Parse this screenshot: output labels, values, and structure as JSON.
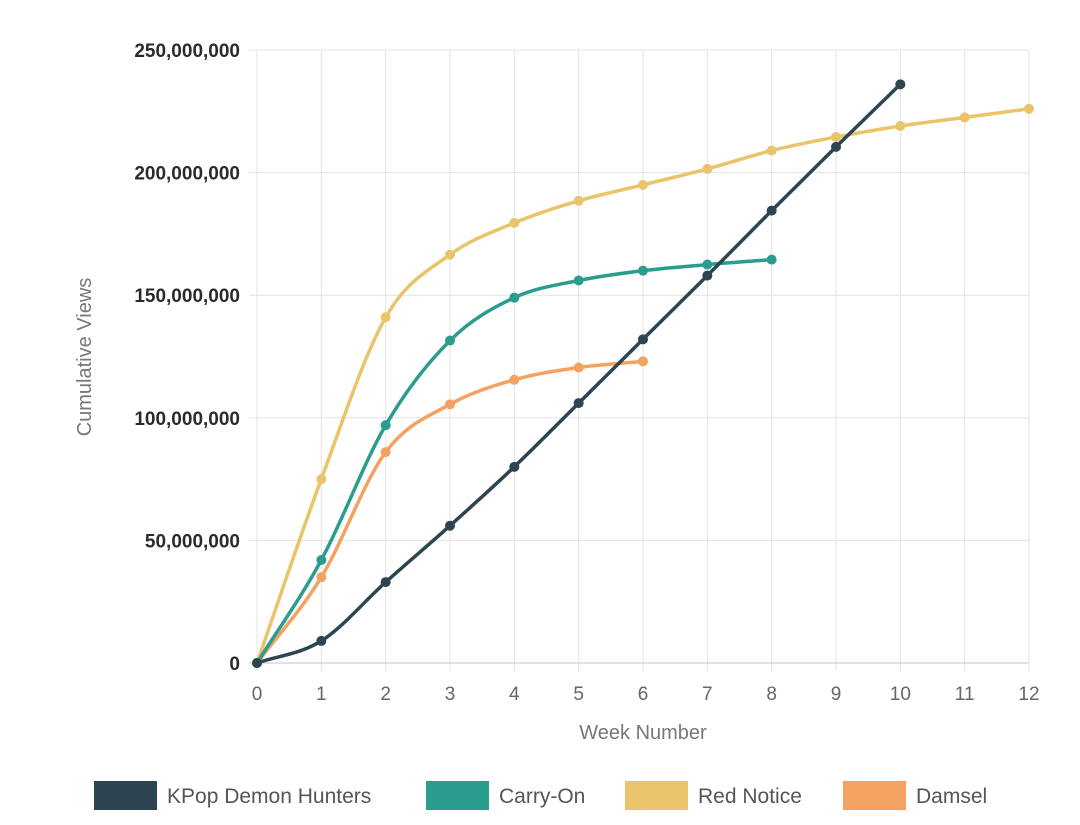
{
  "chart_data": {
    "type": "line",
    "xlabel": "Week Number",
    "ylabel": "Cumulative Views",
    "xlim": [
      0,
      12
    ],
    "ylim": [
      0,
      250000000
    ],
    "xticks": [
      0,
      1,
      2,
      3,
      4,
      5,
      6,
      7,
      8,
      9,
      10,
      11,
      12
    ],
    "yticks": [
      0,
      50000000,
      100000000,
      150000000,
      200000000,
      250000000
    ],
    "ytick_labels": [
      "0",
      "50,000,000",
      "100,000,000",
      "150,000,000",
      "200,000,000",
      "250,000,000"
    ],
    "grid": true,
    "legend_position": "bottom",
    "series": [
      {
        "name": "KPop Demon Hunters",
        "color": "#2c4550",
        "x": [
          0,
          1,
          2,
          3,
          4,
          5,
          6,
          7,
          8,
          9,
          10
        ],
        "values": [
          0,
          9000000,
          33000000,
          56000000,
          80000000,
          106000000,
          132000000,
          158000000,
          184500000,
          210500000,
          236000000
        ]
      },
      {
        "name": "Carry-On",
        "color": "#2a9d8f",
        "x": [
          0,
          1,
          2,
          3,
          4,
          5,
          6,
          7,
          8
        ],
        "values": [
          0,
          42000000,
          97000000,
          131500000,
          149000000,
          156000000,
          160000000,
          162500000,
          164500000
        ]
      },
      {
        "name": "Red Notice",
        "color": "#e9c46a",
        "x": [
          0,
          1,
          2,
          3,
          4,
          5,
          6,
          7,
          8,
          9,
          10,
          11,
          12
        ],
        "values": [
          0,
          75000000,
          141000000,
          166500000,
          179500000,
          188500000,
          195000000,
          201500000,
          209000000,
          214500000,
          219000000,
          222500000,
          226000000
        ]
      },
      {
        "name": "Damsel",
        "color": "#f4a261",
        "x": [
          0,
          1,
          2,
          3,
          4,
          5,
          6
        ],
        "values": [
          0,
          35000000,
          86000000,
          105500000,
          115500000,
          120500000,
          123000000
        ]
      }
    ]
  }
}
